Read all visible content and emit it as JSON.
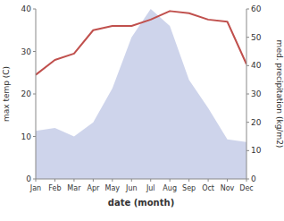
{
  "chart_data": {
    "type": "line",
    "xlabel": "date (month)",
    "ylabel": "max temp (C)",
    "y2label": "med. precipitation (kg/m2)",
    "categories": [
      "Jan",
      "Feb",
      "Mar",
      "Apr",
      "May",
      "Jun",
      "Jul",
      "Aug",
      "Sep",
      "Oct",
      "Nov",
      "Dec"
    ],
    "series": [
      {
        "type": "area",
        "axis": "y2",
        "color": "#c5cce8",
        "values": [
          17,
          18,
          15,
          20,
          32,
          50,
          60,
          54,
          35,
          25,
          14,
          13
        ]
      },
      {
        "type": "line",
        "axis": "y",
        "color": "#c0504d",
        "values": [
          24.5,
          28.0,
          29.5,
          35.0,
          36.0,
          36.0,
          37.5,
          39.5,
          39.0,
          37.5,
          37.0,
          27.0
        ]
      }
    ],
    "ylim": [
      0,
      40
    ],
    "yticks": [
      0,
      10,
      20,
      30,
      40
    ],
    "y2lim": [
      0,
      60
    ],
    "y2ticks": [
      0,
      10,
      20,
      30,
      40,
      50,
      60
    ]
  }
}
